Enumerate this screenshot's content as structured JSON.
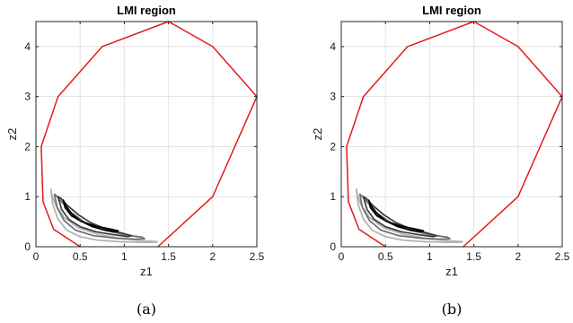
{
  "chart_data": [
    {
      "type": "line",
      "title": "LMI region",
      "xlabel": "z1",
      "ylabel": "z2",
      "caption": "(a)",
      "xlim": [
        0,
        2.5
      ],
      "ylim": [
        0,
        4.5
      ],
      "xticks": [
        0,
        0.5,
        1,
        1.5,
        2,
        2.5
      ],
      "xtick_labels": [
        "0",
        "0.5",
        "1",
        "1.5",
        "2",
        "2.5"
      ],
      "yticks": [
        0,
        1,
        2,
        3,
        4
      ],
      "ytick_labels": [
        "0",
        "1",
        "2",
        "3",
        "4"
      ],
      "grid": true,
      "series": [
        {
          "color": "#e31a1c",
          "x": [
            0.5,
            0.2,
            0.08,
            0.06,
            0.25,
            0.75,
            1.5,
            2.0,
            2.5,
            2.0,
            1.38
          ],
          "y": [
            0.0,
            0.35,
            0.9,
            2.0,
            3.0,
            4.0,
            4.5,
            4.0,
            3.0,
            1.0,
            0.0
          ]
        },
        {
          "color": "#b0b0b0",
          "x": [
            0.17,
            0.19,
            0.25,
            0.35,
            0.5,
            0.7,
            0.95,
            1.2,
            1.36,
            1.37,
            1.2,
            0.95,
            0.7,
            0.48,
            0.32,
            0.22,
            0.18,
            0.17
          ],
          "y": [
            1.15,
            0.85,
            0.55,
            0.33,
            0.2,
            0.13,
            0.1,
            0.09,
            0.09,
            0.1,
            0.12,
            0.17,
            0.25,
            0.38,
            0.58,
            0.85,
            1.05,
            1.15
          ]
        },
        {
          "color": "#6e6e6e",
          "x": [
            0.21,
            0.24,
            0.32,
            0.45,
            0.65,
            0.9,
            1.12,
            1.23,
            1.2,
            1.0,
            0.78,
            0.56,
            0.4,
            0.3,
            0.23,
            0.21
          ],
          "y": [
            1.05,
            0.78,
            0.52,
            0.33,
            0.22,
            0.17,
            0.15,
            0.16,
            0.19,
            0.24,
            0.33,
            0.48,
            0.68,
            0.88,
            1.02,
            1.05
          ]
        },
        {
          "color": "#3a3a3a",
          "x": [
            0.25,
            0.29,
            0.37,
            0.5,
            0.68,
            0.88,
            1.04,
            1.08,
            0.96,
            0.78,
            0.62,
            0.48,
            0.36,
            0.28,
            0.25
          ],
          "y": [
            1.0,
            0.75,
            0.55,
            0.4,
            0.3,
            0.24,
            0.2,
            0.22,
            0.28,
            0.36,
            0.48,
            0.64,
            0.82,
            0.97,
            1.0
          ]
        },
        {
          "color": "#000000",
          "x": [
            0.31,
            0.33,
            0.4,
            0.52,
            0.68,
            0.85,
            0.93,
            0.9,
            0.78,
            0.64,
            0.5,
            0.4,
            0.33,
            0.31
          ],
          "y": [
            0.93,
            0.78,
            0.62,
            0.5,
            0.41,
            0.35,
            0.32,
            0.3,
            0.33,
            0.4,
            0.52,
            0.67,
            0.84,
            0.93
          ]
        }
      ]
    },
    {
      "type": "line",
      "title": "LMI region",
      "xlabel": "z1",
      "ylabel": "z2",
      "caption": "(b)",
      "xlim": [
        0,
        2.5
      ],
      "ylim": [
        0,
        4.5
      ],
      "xticks": [
        0,
        0.5,
        1,
        1.5,
        2,
        2.5
      ],
      "xtick_labels": [
        "0",
        "0.5",
        "1",
        "1.5",
        "2",
        "2.5"
      ],
      "yticks": [
        0,
        1,
        2,
        3,
        4
      ],
      "ytick_labels": [
        "0",
        "1",
        "2",
        "3",
        "4"
      ],
      "grid": true,
      "series": [
        {
          "color": "#e31a1c",
          "x": [
            0.5,
            0.2,
            0.08,
            0.06,
            0.25,
            0.75,
            1.5,
            2.0,
            2.5,
            2.0,
            1.38
          ],
          "y": [
            0.0,
            0.35,
            0.9,
            2.0,
            3.0,
            4.0,
            4.5,
            4.0,
            3.0,
            1.0,
            0.0
          ]
        },
        {
          "color": "#b0b0b0",
          "x": [
            0.17,
            0.19,
            0.25,
            0.35,
            0.5,
            0.7,
            0.95,
            1.2,
            1.36,
            1.37,
            1.2,
            0.95,
            0.7,
            0.48,
            0.32,
            0.22,
            0.18,
            0.17
          ],
          "y": [
            1.15,
            0.85,
            0.55,
            0.33,
            0.2,
            0.13,
            0.1,
            0.09,
            0.09,
            0.1,
            0.12,
            0.17,
            0.25,
            0.38,
            0.58,
            0.85,
            1.05,
            1.15
          ]
        },
        {
          "color": "#6e6e6e",
          "x": [
            0.21,
            0.24,
            0.32,
            0.45,
            0.65,
            0.9,
            1.12,
            1.23,
            1.2,
            1.0,
            0.78,
            0.56,
            0.4,
            0.3,
            0.23,
            0.21
          ],
          "y": [
            1.05,
            0.78,
            0.52,
            0.33,
            0.22,
            0.17,
            0.15,
            0.16,
            0.19,
            0.24,
            0.33,
            0.48,
            0.68,
            0.88,
            1.02,
            1.05
          ]
        },
        {
          "color": "#3a3a3a",
          "x": [
            0.25,
            0.29,
            0.37,
            0.5,
            0.68,
            0.88,
            1.04,
            1.08,
            0.96,
            0.78,
            0.62,
            0.48,
            0.36,
            0.28,
            0.25
          ],
          "y": [
            1.0,
            0.75,
            0.55,
            0.4,
            0.3,
            0.24,
            0.2,
            0.22,
            0.28,
            0.36,
            0.48,
            0.64,
            0.82,
            0.97,
            1.0
          ]
        },
        {
          "color": "#000000",
          "x": [
            0.31,
            0.33,
            0.4,
            0.52,
            0.68,
            0.85,
            0.93,
            0.9,
            0.78,
            0.64,
            0.5,
            0.4,
            0.33,
            0.31
          ],
          "y": [
            0.93,
            0.78,
            0.62,
            0.5,
            0.41,
            0.35,
            0.32,
            0.3,
            0.33,
            0.4,
            0.52,
            0.67,
            0.84,
            0.93
          ]
        }
      ]
    }
  ]
}
